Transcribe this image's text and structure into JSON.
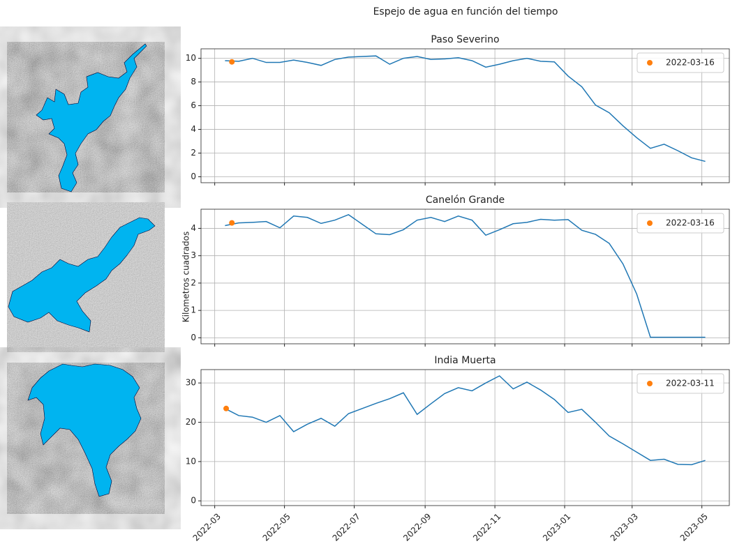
{
  "title": "Espejo de agua en función del tiempo",
  "ylabel": "Kilometros cuadrados",
  "chart_data": [
    {
      "type": "line",
      "title": "Paso Severino",
      "x": [
        "2022-03-10",
        "2022-03-22",
        "2022-04-03",
        "2022-04-15",
        "2022-04-27",
        "2022-05-09",
        "2022-05-21",
        "2022-06-02",
        "2022-06-14",
        "2022-06-26",
        "2022-07-08",
        "2022-07-20",
        "2022-08-01",
        "2022-08-13",
        "2022-08-25",
        "2022-09-06",
        "2022-09-18",
        "2022-09-30",
        "2022-10-12",
        "2022-10-24",
        "2022-11-05",
        "2022-11-17",
        "2022-11-29",
        "2022-12-11",
        "2022-12-23",
        "2023-01-04",
        "2023-01-16",
        "2023-01-28",
        "2023-02-09",
        "2023-02-21",
        "2023-03-05",
        "2023-03-17",
        "2023-03-29",
        "2023-04-10",
        "2023-04-22",
        "2023-05-04"
      ],
      "series": [
        {
          "color": "#1f77b4",
          "values": [
            9.8,
            9.75,
            10.0,
            9.65,
            9.65,
            9.85,
            9.65,
            9.4,
            9.9,
            10.1,
            10.15,
            10.2,
            9.5,
            10.0,
            10.15,
            9.9,
            9.95,
            10.05,
            9.8,
            9.25,
            9.5,
            9.8,
            10.0,
            9.75,
            9.7,
            8.5,
            7.6,
            6.05,
            5.4,
            4.3,
            3.3,
            2.4,
            2.75,
            2.2,
            1.6,
            1.3
          ]
        },
        {
          "name": "2022-03-16",
          "color": "#ff7f0e",
          "x": [
            "2022-03-16"
          ],
          "values": [
            9.7
          ]
        }
      ],
      "xlim": [
        "2022-02-17",
        "2023-05-25"
      ],
      "ylim": [
        -0.5,
        10.8
      ],
      "yticks": [
        0,
        2,
        4,
        6,
        8,
        10
      ],
      "grid": true,
      "legend": "upper right"
    },
    {
      "type": "line",
      "title": "Canelón Grande",
      "x": [
        "2022-03-10",
        "2022-03-22",
        "2022-04-03",
        "2022-04-15",
        "2022-04-27",
        "2022-05-09",
        "2022-05-21",
        "2022-06-02",
        "2022-06-14",
        "2022-06-26",
        "2022-07-08",
        "2022-07-20",
        "2022-08-01",
        "2022-08-13",
        "2022-08-25",
        "2022-09-06",
        "2022-09-18",
        "2022-09-30",
        "2022-10-12",
        "2022-10-24",
        "2022-11-05",
        "2022-11-17",
        "2022-11-29",
        "2022-12-11",
        "2022-12-23",
        "2023-01-04",
        "2023-01-16",
        "2023-01-28",
        "2023-02-09",
        "2023-02-21",
        "2023-03-05",
        "2023-03-17",
        "2023-03-29",
        "2023-04-10",
        "2023-04-22",
        "2023-05-04"
      ],
      "series": [
        {
          "color": "#1f77b4",
          "values": [
            4.1,
            4.2,
            4.22,
            4.25,
            4.02,
            4.45,
            4.4,
            4.18,
            4.3,
            4.5,
            4.15,
            3.8,
            3.77,
            3.95,
            4.3,
            4.4,
            4.25,
            4.45,
            4.3,
            3.75,
            3.95,
            4.17,
            4.22,
            4.33,
            4.3,
            4.32,
            3.93,
            3.78,
            3.45,
            2.7,
            1.6,
            0.02,
            0.02,
            0.02,
            0.02,
            0.02
          ]
        },
        {
          "name": "2022-03-16",
          "color": "#ff7f0e",
          "x": [
            "2022-03-16"
          ],
          "values": [
            4.2
          ]
        }
      ],
      "xlim": [
        "2022-02-17",
        "2023-05-25"
      ],
      "ylim": [
        -0.22,
        4.7
      ],
      "yticks": [
        0,
        1,
        2,
        3,
        4
      ],
      "grid": true,
      "legend": "upper right"
    },
    {
      "type": "line",
      "title": "India Muerta",
      "x": [
        "2022-03-10",
        "2022-03-22",
        "2022-04-03",
        "2022-04-15",
        "2022-04-27",
        "2022-05-09",
        "2022-05-21",
        "2022-06-02",
        "2022-06-14",
        "2022-06-26",
        "2022-07-08",
        "2022-07-20",
        "2022-08-01",
        "2022-08-13",
        "2022-08-25",
        "2022-09-06",
        "2022-09-18",
        "2022-09-30",
        "2022-10-12",
        "2022-10-24",
        "2022-11-05",
        "2022-11-17",
        "2022-11-29",
        "2022-12-11",
        "2022-12-23",
        "2023-01-04",
        "2023-01-16",
        "2023-01-28",
        "2023-02-09",
        "2023-02-21",
        "2023-03-05",
        "2023-03-17",
        "2023-03-29",
        "2023-04-10",
        "2023-04-22",
        "2023-05-04"
      ],
      "series": [
        {
          "color": "#1f77b4",
          "values": [
            23.5,
            21.7,
            21.3,
            20.0,
            21.7,
            17.6,
            19.5,
            21.0,
            19.0,
            22.2,
            23.5,
            24.8,
            26.0,
            27.5,
            22.0,
            24.7,
            27.3,
            28.8,
            28.0,
            30.0,
            31.8,
            28.5,
            30.2,
            28.2,
            25.8,
            22.5,
            23.3,
            20.0,
            16.5,
            14.5,
            12.4,
            10.3,
            10.6,
            9.3,
            9.2,
            10.3
          ]
        },
        {
          "name": "2022-03-11",
          "color": "#ff7f0e",
          "x": [
            "2022-03-11"
          ],
          "values": [
            23.5
          ]
        }
      ],
      "xlim": [
        "2022-02-17",
        "2023-05-25"
      ],
      "ylim": [
        -1.2,
        33.4
      ],
      "yticks": [
        0,
        10,
        20,
        30
      ],
      "grid": true,
      "legend": "upper right",
      "xticks": [
        "2022-03",
        "2022-05",
        "2022-07",
        "2022-09",
        "2022-11",
        "2023-01",
        "2023-03",
        "2023-05"
      ]
    }
  ]
}
